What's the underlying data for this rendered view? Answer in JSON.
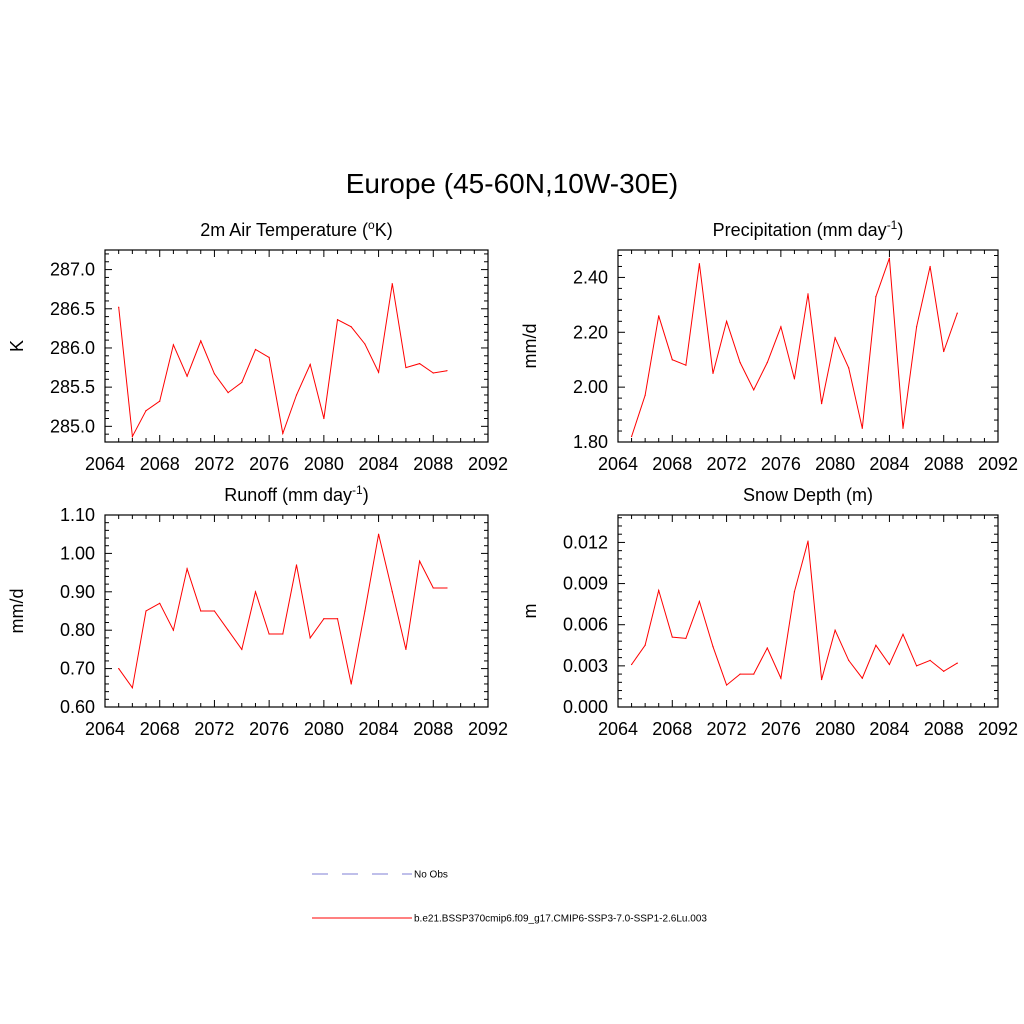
{
  "title": "Europe (45-60N,10W-30E)",
  "colors": {
    "series": "#ff0000",
    "obs": "#9999dd",
    "axis": "#000000"
  },
  "legend": [
    {
      "label": "No Obs",
      "style": "dashed",
      "color": "#9999dd"
    },
    {
      "label": "b.e21.BSSP370cmip6.f09_g17.CMIP6-SSP3-7.0-SSP1-2.6Lu.003",
      "style": "solid",
      "color": "#ff0000"
    }
  ],
  "chart_data": [
    {
      "type": "line",
      "title": "2m Air Temperature (oK)",
      "title_parts": [
        "2m Air Temperature (",
        "o",
        "K)"
      ],
      "title_script": "sup",
      "ylabel": "K",
      "xlim": [
        2064,
        2092
      ],
      "ylim": [
        284.8,
        287.25
      ],
      "xticks": [
        2064,
        2068,
        2072,
        2076,
        2080,
        2084,
        2088,
        2092
      ],
      "yticks": [
        285.0,
        285.5,
        286.0,
        286.5,
        287.0
      ],
      "ytick_labels": [
        "285.0",
        "285.5",
        "286.0",
        "286.5",
        "287.0"
      ],
      "x": [
        2065,
        2066,
        2067,
        2068,
        2069,
        2070,
        2071,
        2072,
        2073,
        2074,
        2075,
        2076,
        2077,
        2078,
        2079,
        2080,
        2081,
        2082,
        2083,
        2084,
        2085,
        2086,
        2087,
        2088,
        2089
      ],
      "series": [
        {
          "values": [
            286.52,
            284.87,
            285.2,
            285.32,
            286.04,
            285.64,
            286.09,
            285.67,
            285.43,
            285.56,
            285.98,
            285.88,
            284.91,
            285.4,
            285.79,
            285.1,
            286.36,
            286.27,
            286.05,
            285.69,
            286.82,
            285.75,
            285.8,
            285.68,
            285.71
          ]
        }
      ]
    },
    {
      "type": "line",
      "title": "Precipitation (mm day-1)",
      "title_parts": [
        "Precipitation (mm day",
        "-1",
        ")"
      ],
      "title_script": "sup",
      "ylabel": "mm/d",
      "xlim": [
        2064,
        2092
      ],
      "ylim": [
        1.8,
        2.5
      ],
      "xticks": [
        2064,
        2068,
        2072,
        2076,
        2080,
        2084,
        2088,
        2092
      ],
      "yticks": [
        1.8,
        2.0,
        2.2,
        2.4
      ],
      "ytick_labels": [
        "1.80",
        "2.00",
        "2.20",
        "2.40"
      ],
      "x": [
        2065,
        2066,
        2067,
        2068,
        2069,
        2070,
        2071,
        2072,
        2073,
        2074,
        2075,
        2076,
        2077,
        2078,
        2079,
        2080,
        2081,
        2082,
        2083,
        2084,
        2085,
        2086,
        2087,
        2088,
        2089
      ],
      "series": [
        {
          "values": [
            1.82,
            1.97,
            2.26,
            2.1,
            2.08,
            2.45,
            2.05,
            2.24,
            2.09,
            1.99,
            2.09,
            2.22,
            2.03,
            2.34,
            1.94,
            2.18,
            2.07,
            1.85,
            2.33,
            2.47,
            1.85,
            2.22,
            2.44,
            2.13,
            2.27
          ]
        }
      ]
    },
    {
      "type": "line",
      "title": "Runoff (mm day-1)",
      "title_parts": [
        "Runoff (mm day",
        "-1",
        ")"
      ],
      "title_script": "sup",
      "ylabel": "mm/d",
      "xlim": [
        2064,
        2092
      ],
      "ylim": [
        0.6,
        1.1
      ],
      "xticks": [
        2064,
        2068,
        2072,
        2076,
        2080,
        2084,
        2088,
        2092
      ],
      "yticks": [
        0.6,
        0.7,
        0.8,
        0.9,
        1.0,
        1.1
      ],
      "ytick_labels": [
        "0.60",
        "0.70",
        "0.80",
        "0.90",
        "1.00",
        "1.10"
      ],
      "x": [
        2065,
        2066,
        2067,
        2068,
        2069,
        2070,
        2071,
        2072,
        2073,
        2074,
        2075,
        2076,
        2077,
        2078,
        2079,
        2080,
        2081,
        2082,
        2083,
        2084,
        2085,
        2086,
        2087,
        2088,
        2089
      ],
      "series": [
        {
          "values": [
            0.7,
            0.65,
            0.85,
            0.87,
            0.8,
            0.96,
            0.85,
            0.85,
            0.8,
            0.75,
            0.9,
            0.79,
            0.79,
            0.97,
            0.78,
            0.83,
            0.83,
            0.66,
            0.85,
            1.05,
            0.9,
            0.75,
            0.98,
            0.91,
            0.91
          ]
        }
      ]
    },
    {
      "type": "line",
      "title": "Snow Depth (m)",
      "title_parts": [
        "Snow Depth (m)",
        "",
        ""
      ],
      "title_script": "none",
      "ylabel": "m",
      "xlim": [
        2064,
        2092
      ],
      "ylim": [
        0.0,
        0.014
      ],
      "xticks": [
        2064,
        2068,
        2072,
        2076,
        2080,
        2084,
        2088,
        2092
      ],
      "yticks": [
        0.0,
        0.003,
        0.006,
        0.009,
        0.012
      ],
      "ytick_labels": [
        "0.000",
        "0.003",
        "0.006",
        "0.009",
        "0.012"
      ],
      "x": [
        2065,
        2066,
        2067,
        2068,
        2069,
        2070,
        2071,
        2072,
        2073,
        2074,
        2075,
        2076,
        2077,
        2078,
        2079,
        2080,
        2081,
        2082,
        2083,
        2084,
        2085,
        2086,
        2087,
        2088,
        2089
      ],
      "series": [
        {
          "values": [
            0.0031,
            0.0045,
            0.0085,
            0.0051,
            0.005,
            0.0077,
            0.0044,
            0.0016,
            0.0024,
            0.0024,
            0.0043,
            0.0021,
            0.0084,
            0.0121,
            0.002,
            0.0056,
            0.0034,
            0.0021,
            0.0045,
            0.0031,
            0.0053,
            0.003,
            0.0034,
            0.0026,
            0.0032
          ]
        }
      ]
    }
  ]
}
